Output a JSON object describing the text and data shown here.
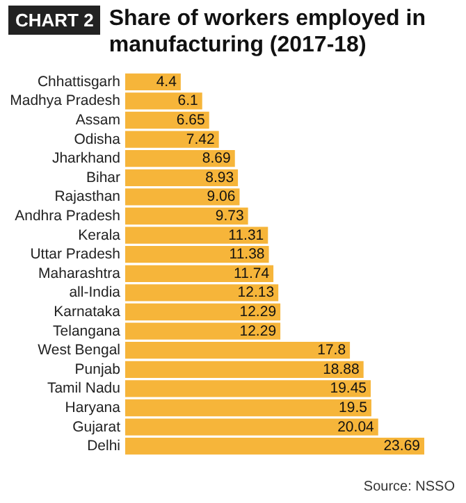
{
  "chart_data": {
    "type": "bar",
    "orientation": "horizontal",
    "title": "Share of workers employed in manufacturing (2017-18)",
    "categories": [
      "Chhattisgarh",
      "Madhya Pradesh",
      "Assam",
      "Odisha",
      "Jharkhand",
      "Bihar",
      "Rajasthan",
      "Andhra Pradesh",
      "Kerala",
      "Uttar Pradesh",
      "Maharashtra",
      "all-India",
      "Karnataka",
      "Telangana",
      "West Bengal",
      "Punjab",
      "Tamil Nadu",
      "Haryana",
      "Gujarat",
      "Delhi"
    ],
    "values": [
      4.4,
      6.1,
      6.65,
      7.42,
      8.69,
      8.93,
      9.06,
      9.73,
      11.31,
      11.38,
      11.74,
      12.13,
      12.29,
      12.29,
      17.8,
      18.88,
      19.45,
      19.5,
      20.04,
      23.69
    ],
    "color": "#f6b53a",
    "data_labels": true,
    "grid": false,
    "annotations": [
      "CHART 2",
      "Source: NSSO"
    ]
  }
}
